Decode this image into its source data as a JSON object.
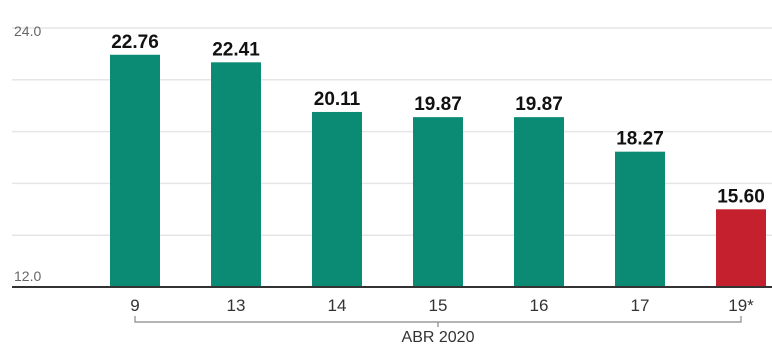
{
  "chart_data": {
    "type": "bar",
    "categories": [
      "9",
      "13",
      "14",
      "15",
      "16",
      "17",
      "19*"
    ],
    "values": [
      22.76,
      22.41,
      20.11,
      19.87,
      19.87,
      18.27,
      15.6
    ],
    "value_labels": [
      "22.76",
      "22.41",
      "20.11",
      "19.87",
      "19.87",
      "18.27",
      "15.60"
    ],
    "ylim": [
      12.0,
      24.0
    ],
    "y_tick_labels": [
      "24.0",
      "12.0"
    ],
    "x_group_label": "ABR 2020",
    "grid": true,
    "colors": {
      "bar": "#0b8a74",
      "highlight_bar": "#c4202e",
      "gridline": "#e6e6e6",
      "axis": "#333333"
    },
    "highlight_index": 6
  }
}
